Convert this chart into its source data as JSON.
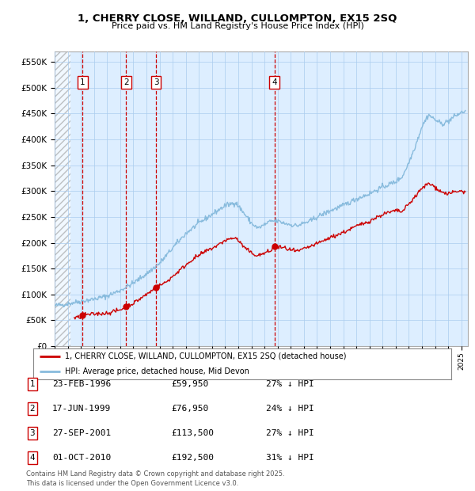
{
  "title1": "1, CHERRY CLOSE, WILLAND, CULLOMPTON, EX15 2SQ",
  "title2": "Price paid vs. HM Land Registry's House Price Index (HPI)",
  "xlim_start": 1994.0,
  "xlim_end": 2025.5,
  "ylim_min": 0,
  "ylim_max": 570000,
  "sale_dates_num": [
    1996.14,
    1999.46,
    2001.74,
    2010.75
  ],
  "sale_prices": [
    59950,
    76950,
    113500,
    192500
  ],
  "sale_labels": [
    "1",
    "2",
    "3",
    "4"
  ],
  "legend_red": "1, CHERRY CLOSE, WILLAND, CULLOMPTON, EX15 2SQ (detached house)",
  "legend_blue": "HPI: Average price, detached house, Mid Devon",
  "table_data": [
    [
      "1",
      "23-FEB-1996",
      "£59,950",
      "27% ↓ HPI"
    ],
    [
      "2",
      "17-JUN-1999",
      "£76,950",
      "24% ↓ HPI"
    ],
    [
      "3",
      "27-SEP-2001",
      "£113,500",
      "27% ↓ HPI"
    ],
    [
      "4",
      "01-OCT-2010",
      "£192,500",
      "31% ↓ HPI"
    ]
  ],
  "footnote": "Contains HM Land Registry data © Crown copyright and database right 2025.\nThis data is licensed under the Open Government Licence v3.0.",
  "bg_color": "#ddeeff",
  "grid_color": "#aaccee",
  "sale_marker_color": "#cc0000",
  "hpi_line_color": "#88bbdd",
  "red_line_color": "#cc0000",
  "hpi_anchors": [
    [
      1994.0,
      78000
    ],
    [
      1995.0,
      82000
    ],
    [
      1996.0,
      87000
    ],
    [
      1997.0,
      91000
    ],
    [
      1998.0,
      97000
    ],
    [
      1999.0,
      108000
    ],
    [
      2000.0,
      122000
    ],
    [
      2001.0,
      140000
    ],
    [
      2002.0,
      160000
    ],
    [
      2003.0,
      190000
    ],
    [
      2004.0,
      218000
    ],
    [
      2005.0,
      238000
    ],
    [
      2006.0,
      255000
    ],
    [
      2007.0,
      272000
    ],
    [
      2007.8,
      278000
    ],
    [
      2008.5,
      255000
    ],
    [
      2009.0,
      238000
    ],
    [
      2009.5,
      228000
    ],
    [
      2010.0,
      235000
    ],
    [
      2010.5,
      242000
    ],
    [
      2011.0,
      242000
    ],
    [
      2011.5,
      238000
    ],
    [
      2012.0,
      235000
    ],
    [
      2012.5,
      233000
    ],
    [
      2013.0,
      238000
    ],
    [
      2013.5,
      242000
    ],
    [
      2014.0,
      250000
    ],
    [
      2015.0,
      262000
    ],
    [
      2016.0,
      272000
    ],
    [
      2017.0,
      285000
    ],
    [
      2018.0,
      295000
    ],
    [
      2019.0,
      308000
    ],
    [
      2020.0,
      318000
    ],
    [
      2020.5,
      328000
    ],
    [
      2021.0,
      355000
    ],
    [
      2021.5,
      388000
    ],
    [
      2022.0,
      425000
    ],
    [
      2022.5,
      448000
    ],
    [
      2023.0,
      438000
    ],
    [
      2023.5,
      430000
    ],
    [
      2024.0,
      435000
    ],
    [
      2024.5,
      445000
    ],
    [
      2025.0,
      452000
    ],
    [
      2025.3,
      455000
    ]
  ],
  "prop_anchors": [
    [
      1995.5,
      54000
    ],
    [
      1996.0,
      57000
    ],
    [
      1996.14,
      59950
    ],
    [
      1997.0,
      62000
    ],
    [
      1998.0,
      64000
    ],
    [
      1999.0,
      70000
    ],
    [
      1999.46,
      76950
    ],
    [
      2000.0,
      83000
    ],
    [
      2001.0,
      100000
    ],
    [
      2001.74,
      113500
    ],
    [
      2002.5,
      124000
    ],
    [
      2003.5,
      146000
    ],
    [
      2004.5,
      168000
    ],
    [
      2005.5,
      183000
    ],
    [
      2006.5,
      196000
    ],
    [
      2007.0,
      205000
    ],
    [
      2007.8,
      210000
    ],
    [
      2008.5,
      190000
    ],
    [
      2009.0,
      180000
    ],
    [
      2009.5,
      175000
    ],
    [
      2010.0,
      180000
    ],
    [
      2010.5,
      185000
    ],
    [
      2010.75,
      192500
    ],
    [
      2011.0,
      192000
    ],
    [
      2011.5,
      190000
    ],
    [
      2012.0,
      186000
    ],
    [
      2012.5,
      183000
    ],
    [
      2013.0,
      188000
    ],
    [
      2014.0,
      198000
    ],
    [
      2015.0,
      210000
    ],
    [
      2016.0,
      220000
    ],
    [
      2017.0,
      232000
    ],
    [
      2018.0,
      242000
    ],
    [
      2019.0,
      255000
    ],
    [
      2020.0,
      262000
    ],
    [
      2020.5,
      260000
    ],
    [
      2021.0,
      275000
    ],
    [
      2021.5,
      290000
    ],
    [
      2022.0,
      305000
    ],
    [
      2022.5,
      315000
    ],
    [
      2023.0,
      308000
    ],
    [
      2023.5,
      298000
    ],
    [
      2024.0,
      295000
    ],
    [
      2024.5,
      298000
    ],
    [
      2025.0,
      300000
    ],
    [
      2025.3,
      298000
    ]
  ]
}
